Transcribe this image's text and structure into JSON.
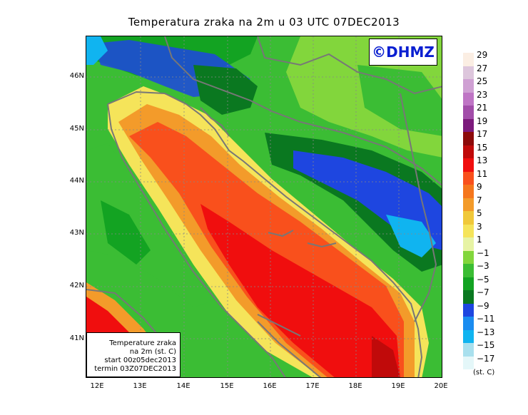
{
  "title": "Temperatura zraka na 2m u 03 UTC 07DEC2013",
  "logo_text": "©DHMZ",
  "infobox": {
    "line1": "Temperature zraka",
    "line2": "na 2m (st. C)",
    "line3": "start 00z05dec2013",
    "line4": "termin 03Z07DEC2013"
  },
  "y_axis": [
    "46N",
    "45N",
    "44N",
    "43N",
    "42N",
    "41N"
  ],
  "x_axis": [
    "12E",
    "13E",
    "14E",
    "15E",
    "16E",
    "17E",
    "18E",
    "19E",
    "20E"
  ],
  "legend": {
    "unit": "(st. C)",
    "labels": [
      "29",
      "27",
      "25",
      "23",
      "21",
      "19",
      "17",
      "15",
      "13",
      "11",
      "9",
      "7",
      "5",
      "3",
      "1",
      "−1",
      "−3",
      "−5",
      "−7",
      "−9",
      "−11",
      "−13",
      "−15",
      "−17"
    ],
    "colors": [
      "#fbeee3",
      "#ddc6dc",
      "#cfa0d3",
      "#bf75c5",
      "#a24da9",
      "#7c1a7c",
      "#8c0a0a",
      "#c00a0a",
      "#f00e0e",
      "#f9501c",
      "#f5761c",
      "#f39b2a",
      "#f0c83a",
      "#f5e45a",
      "#e7f3a4",
      "#82d63c",
      "#3bbd34",
      "#13a322",
      "#0a7820",
      "#1e46e0",
      "#1a8cf0",
      "#10b4f0",
      "#a9e0ee",
      "#e4f7f9"
    ]
  }
}
